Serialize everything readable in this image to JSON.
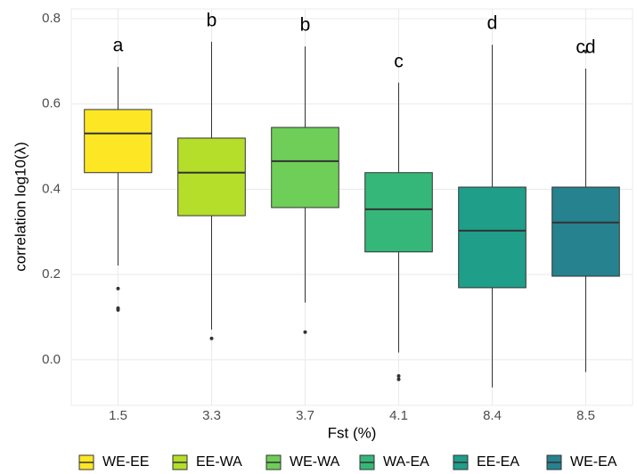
{
  "chart_data": {
    "type": "boxplot",
    "x_label": "Fst (%)",
    "y_label": "correlation log10(λ)",
    "categories": [
      "1.5",
      "3.3",
      "3.7",
      "4.1",
      "8.4",
      "8.5"
    ],
    "boxes": [
      {
        "name": "WE-EE",
        "color": "#FDE725",
        "min": 0.221,
        "q1": 0.439,
        "median": 0.531,
        "q3": 0.587,
        "max": 0.687,
        "outliers": [
          0.167,
          0.121,
          0.117
        ],
        "annotation": "a"
      },
      {
        "name": "EE-WA",
        "color": "#B5DE2B",
        "min": 0.071,
        "q1": 0.338,
        "median": 0.439,
        "q3": 0.52,
        "max": 0.746,
        "outliers": [
          0.05
        ],
        "annotation": "b"
      },
      {
        "name": "WE-WA",
        "color": "#6ECE58",
        "min": 0.134,
        "q1": 0.357,
        "median": 0.466,
        "q3": 0.545,
        "max": 0.735,
        "outliers": [
          0.065
        ],
        "annotation": "b"
      },
      {
        "name": "WA-EA",
        "color": "#35B779",
        "min": 0.017,
        "q1": 0.253,
        "median": 0.353,
        "q3": 0.439,
        "max": 0.65,
        "outliers": [
          -0.038,
          -0.046
        ],
        "annotation": "c"
      },
      {
        "name": "EE-EA",
        "color": "#1F9E89",
        "min": -0.065,
        "q1": 0.169,
        "median": 0.303,
        "q3": 0.405,
        "max": 0.739,
        "outliers": [],
        "annotation": "d"
      },
      {
        "name": "WE-EA",
        "color": "#26828E",
        "min": -0.029,
        "q1": 0.196,
        "median": 0.322,
        "q3": 0.405,
        "max": 0.683,
        "outliers": [
          0.723
        ],
        "annotation": "cd"
      }
    ],
    "ylim": [
      -0.107,
      0.823
    ],
    "yticks": [
      {
        "value": 0,
        "label": "0.0"
      },
      0.2,
      0.4,
      0.6,
      0.8
    ],
    "grid": true
  }
}
